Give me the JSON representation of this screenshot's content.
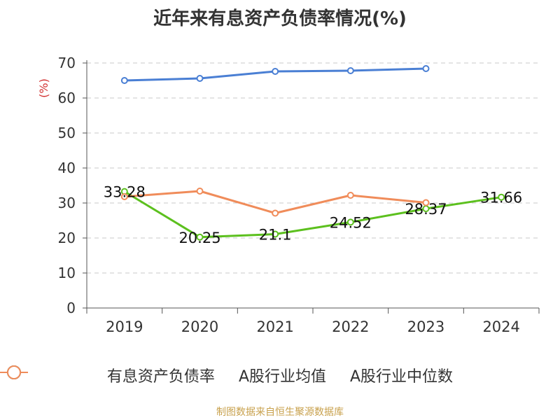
{
  "title": "近年来有息资产负债率情况(%)",
  "source": "制图数据来自恒生聚源数据库",
  "chart_data": {
    "type": "line",
    "title": "近年来有息资产负债率情况(%)",
    "ylabel": "(%)",
    "categories": [
      "2019",
      "2020",
      "2021",
      "2022",
      "2023",
      "2024"
    ],
    "ylim": [
      0,
      70
    ],
    "yticks": [
      0,
      10,
      20,
      30,
      40,
      50,
      60,
      70
    ],
    "grid": true,
    "legend_position": "bottom",
    "series": [
      {
        "name": "有息资产负债率",
        "color": "#5cc01e",
        "values": [
          33.28,
          20.25,
          21.1,
          24.52,
          28.37,
          31.66
        ],
        "labels": [
          "33.28",
          "20.25",
          "21.1",
          "24.52",
          "28.37",
          "31.66"
        ]
      },
      {
        "name": "A股行业均值",
        "color": "#4a7fd4",
        "values": [
          65.0,
          65.6,
          67.6,
          67.8,
          68.4,
          null
        ]
      },
      {
        "name": "A股行业中位数",
        "color": "#f08c5a",
        "values": [
          31.8,
          33.4,
          27.1,
          32.2,
          30.1,
          null
        ]
      }
    ]
  }
}
